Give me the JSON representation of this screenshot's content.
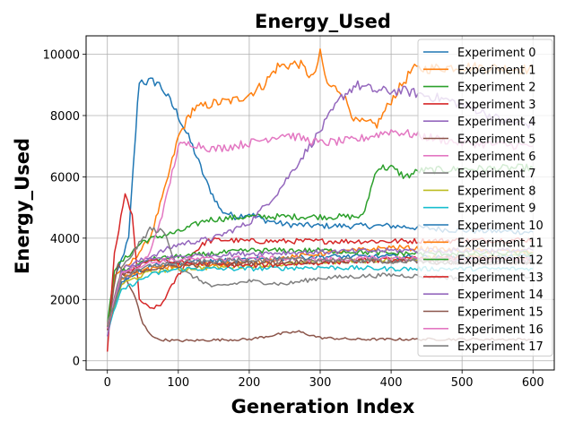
{
  "chart_data": {
    "type": "line",
    "title": "Energy_Used",
    "xlabel": "Generation Index",
    "ylabel": "Energy_Used",
    "xlim": [
      -30,
      630
    ],
    "ylim": [
      -300,
      10600
    ],
    "xticks": [
      0,
      100,
      200,
      300,
      400,
      500,
      600
    ],
    "yticks": [
      0,
      2000,
      4000,
      6000,
      8000,
      10000
    ],
    "grid": true,
    "legend_position": "top-right",
    "series": [
      {
        "name": "Experiment 0",
        "color": "#1f77b4",
        "points": [
          [
            0,
            1000
          ],
          [
            10,
            2600
          ],
          [
            20,
            3300
          ],
          [
            30,
            4000
          ],
          [
            40,
            7500
          ],
          [
            45,
            9150
          ],
          [
            55,
            9100
          ],
          [
            70,
            9100
          ],
          [
            80,
            8800
          ],
          [
            100,
            8000
          ],
          [
            120,
            7000
          ],
          [
            140,
            5800
          ],
          [
            160,
            4900
          ],
          [
            180,
            4700
          ],
          [
            200,
            4800
          ],
          [
            220,
            4600
          ],
          [
            250,
            4450
          ],
          [
            300,
            4400
          ],
          [
            400,
            4400
          ],
          [
            500,
            4250
          ],
          [
            600,
            4200
          ]
        ]
      },
      {
        "name": "Experiment 1",
        "color": "#ff7f0e",
        "points": [
          [
            0,
            1100
          ],
          [
            10,
            2800
          ],
          [
            30,
            3100
          ],
          [
            60,
            4000
          ],
          [
            80,
            5500
          ],
          [
            100,
            7300
          ],
          [
            120,
            8200
          ],
          [
            150,
            8400
          ],
          [
            180,
            8500
          ],
          [
            200,
            8700
          ],
          [
            220,
            9000
          ],
          [
            240,
            9600
          ],
          [
            270,
            9700
          ],
          [
            290,
            9200
          ],
          [
            300,
            10000
          ],
          [
            310,
            9000
          ],
          [
            330,
            8800
          ],
          [
            350,
            7800
          ],
          [
            380,
            7700
          ],
          [
            400,
            8500
          ],
          [
            430,
            9500
          ],
          [
            500,
            9600
          ],
          [
            600,
            9500
          ]
        ]
      },
      {
        "name": "Experiment 2",
        "color": "#2ca02c",
        "points": [
          [
            0,
            1200
          ],
          [
            10,
            3000
          ],
          [
            50,
            3900
          ],
          [
            80,
            4100
          ],
          [
            100,
            4200
          ],
          [
            140,
            4600
          ],
          [
            200,
            4700
          ],
          [
            300,
            4700
          ],
          [
            360,
            4700
          ],
          [
            380,
            6300
          ],
          [
            400,
            6300
          ],
          [
            420,
            6000
          ],
          [
            440,
            6200
          ],
          [
            500,
            6250
          ],
          [
            600,
            6300
          ]
        ]
      },
      {
        "name": "Experiment 3",
        "color": "#d62728",
        "points": [
          [
            0,
            300
          ],
          [
            10,
            3500
          ],
          [
            25,
            5400
          ],
          [
            35,
            4800
          ],
          [
            45,
            2000
          ],
          [
            60,
            1700
          ],
          [
            75,
            1800
          ],
          [
            85,
            2200
          ],
          [
            100,
            2800
          ],
          [
            120,
            3500
          ],
          [
            140,
            3900
          ],
          [
            160,
            3950
          ],
          [
            200,
            3900
          ],
          [
            300,
            3900
          ],
          [
            400,
            3900
          ],
          [
            600,
            3950
          ]
        ]
      },
      {
        "name": "Experiment 4",
        "color": "#9467bd",
        "points": [
          [
            0,
            800
          ],
          [
            20,
            3000
          ],
          [
            60,
            3400
          ],
          [
            100,
            3800
          ],
          [
            150,
            4000
          ],
          [
            200,
            4500
          ],
          [
            240,
            5500
          ],
          [
            270,
            6500
          ],
          [
            300,
            7500
          ],
          [
            330,
            8600
          ],
          [
            350,
            9000
          ],
          [
            380,
            8800
          ],
          [
            420,
            8800
          ],
          [
            480,
            8500
          ],
          [
            520,
            8200
          ],
          [
            560,
            7800
          ],
          [
            600,
            7700
          ]
        ]
      },
      {
        "name": "Experiment 5",
        "color": "#8c564b",
        "points": [
          [
            0,
            1000
          ],
          [
            15,
            3200
          ],
          [
            30,
            2500
          ],
          [
            40,
            2000
          ],
          [
            50,
            1200
          ],
          [
            60,
            900
          ],
          [
            70,
            700
          ],
          [
            100,
            650
          ],
          [
            150,
            680
          ],
          [
            200,
            700
          ],
          [
            250,
            900
          ],
          [
            270,
            950
          ],
          [
            300,
            750
          ],
          [
            350,
            700
          ],
          [
            400,
            700
          ],
          [
            500,
            700
          ],
          [
            600,
            700
          ]
        ]
      },
      {
        "name": "Experiment 6",
        "color": "#e377c2",
        "points": [
          [
            0,
            1200
          ],
          [
            20,
            2500
          ],
          [
            60,
            3500
          ],
          [
            80,
            5000
          ],
          [
            100,
            7000
          ],
          [
            120,
            7100
          ],
          [
            150,
            6900
          ],
          [
            200,
            7100
          ],
          [
            250,
            7400
          ],
          [
            300,
            7100
          ],
          [
            350,
            7200
          ],
          [
            400,
            7500
          ],
          [
            450,
            7300
          ],
          [
            500,
            7100
          ],
          [
            600,
            7000
          ]
        ]
      },
      {
        "name": "Experiment 7",
        "color": "#7f7f7f",
        "points": [
          [
            0,
            1100
          ],
          [
            20,
            3000
          ],
          [
            60,
            4300
          ],
          [
            80,
            4200
          ],
          [
            100,
            3000
          ],
          [
            150,
            2400
          ],
          [
            200,
            2600
          ],
          [
            250,
            2500
          ],
          [
            300,
            2700
          ],
          [
            400,
            2800
          ],
          [
            500,
            2700
          ],
          [
            600,
            2750
          ]
        ]
      },
      {
        "name": "Experiment 8",
        "color": "#bcbd22",
        "points": [
          [
            0,
            1000
          ],
          [
            20,
            2500
          ],
          [
            60,
            2900
          ],
          [
            100,
            3000
          ],
          [
            200,
            3100
          ],
          [
            300,
            3200
          ],
          [
            400,
            3300
          ],
          [
            500,
            3400
          ],
          [
            600,
            3500
          ]
        ]
      },
      {
        "name": "Experiment 9",
        "color": "#17becf",
        "points": [
          [
            0,
            1000
          ],
          [
            20,
            2300
          ],
          [
            60,
            2800
          ],
          [
            100,
            3000
          ],
          [
            200,
            3000
          ],
          [
            300,
            3050
          ],
          [
            400,
            3000
          ],
          [
            500,
            3000
          ],
          [
            600,
            3000
          ]
        ]
      },
      {
        "name": "Experiment 10",
        "color": "#1f77b4",
        "points": [
          [
            0,
            1050
          ],
          [
            20,
            2600
          ],
          [
            60,
            3100
          ],
          [
            100,
            3200
          ],
          [
            200,
            3300
          ],
          [
            300,
            3400
          ],
          [
            400,
            3400
          ],
          [
            500,
            3350
          ],
          [
            600,
            3400
          ]
        ]
      },
      {
        "name": "Experiment 11",
        "color": "#ff7f0e",
        "points": [
          [
            0,
            1050
          ],
          [
            20,
            2700
          ],
          [
            60,
            3000
          ],
          [
            100,
            3100
          ],
          [
            200,
            3200
          ],
          [
            300,
            3500
          ],
          [
            400,
            3700
          ],
          [
            500,
            3600
          ],
          [
            600,
            3550
          ]
        ]
      },
      {
        "name": "Experiment 12",
        "color": "#2ca02c",
        "points": [
          [
            0,
            1100
          ],
          [
            20,
            2900
          ],
          [
            60,
            3300
          ],
          [
            100,
            3400
          ],
          [
            150,
            3500
          ],
          [
            200,
            3600
          ],
          [
            300,
            3600
          ],
          [
            400,
            3500
          ],
          [
            600,
            3500
          ]
        ]
      },
      {
        "name": "Experiment 13",
        "color": "#d62728",
        "points": [
          [
            0,
            1000
          ],
          [
            20,
            2800
          ],
          [
            60,
            3300
          ],
          [
            100,
            3200
          ],
          [
            200,
            3100
          ],
          [
            300,
            3200
          ],
          [
            400,
            3300
          ],
          [
            500,
            3350
          ],
          [
            600,
            3300
          ]
        ]
      },
      {
        "name": "Experiment 14",
        "color": "#9467bd",
        "points": [
          [
            0,
            1000
          ],
          [
            20,
            2900
          ],
          [
            60,
            3300
          ],
          [
            100,
            3400
          ],
          [
            200,
            3500
          ],
          [
            300,
            3550
          ],
          [
            400,
            3600
          ],
          [
            500,
            3600
          ],
          [
            600,
            3600
          ]
        ]
      },
      {
        "name": "Experiment 15",
        "color": "#8c564b",
        "points": [
          [
            0,
            1000
          ],
          [
            20,
            2800
          ],
          [
            60,
            3000
          ],
          [
            100,
            3100
          ],
          [
            200,
            3200
          ],
          [
            300,
            3250
          ],
          [
            400,
            3250
          ],
          [
            500,
            3200
          ],
          [
            600,
            3200
          ]
        ]
      },
      {
        "name": "Experiment 16",
        "color": "#e377c2",
        "points": [
          [
            0,
            1050
          ],
          [
            20,
            2900
          ],
          [
            60,
            3200
          ],
          [
            100,
            3300
          ],
          [
            200,
            3350
          ],
          [
            300,
            3300
          ],
          [
            400,
            3350
          ],
          [
            500,
            3300
          ],
          [
            600,
            3300
          ]
        ]
      },
      {
        "name": "Experiment 17",
        "color": "#7f7f7f",
        "points": [
          [
            0,
            1100
          ],
          [
            20,
            2700
          ],
          [
            60,
            3100
          ],
          [
            100,
            3200
          ],
          [
            200,
            3300
          ],
          [
            300,
            3300
          ],
          [
            400,
            3250
          ],
          [
            500,
            3200
          ],
          [
            600,
            3250
          ]
        ]
      }
    ]
  }
}
